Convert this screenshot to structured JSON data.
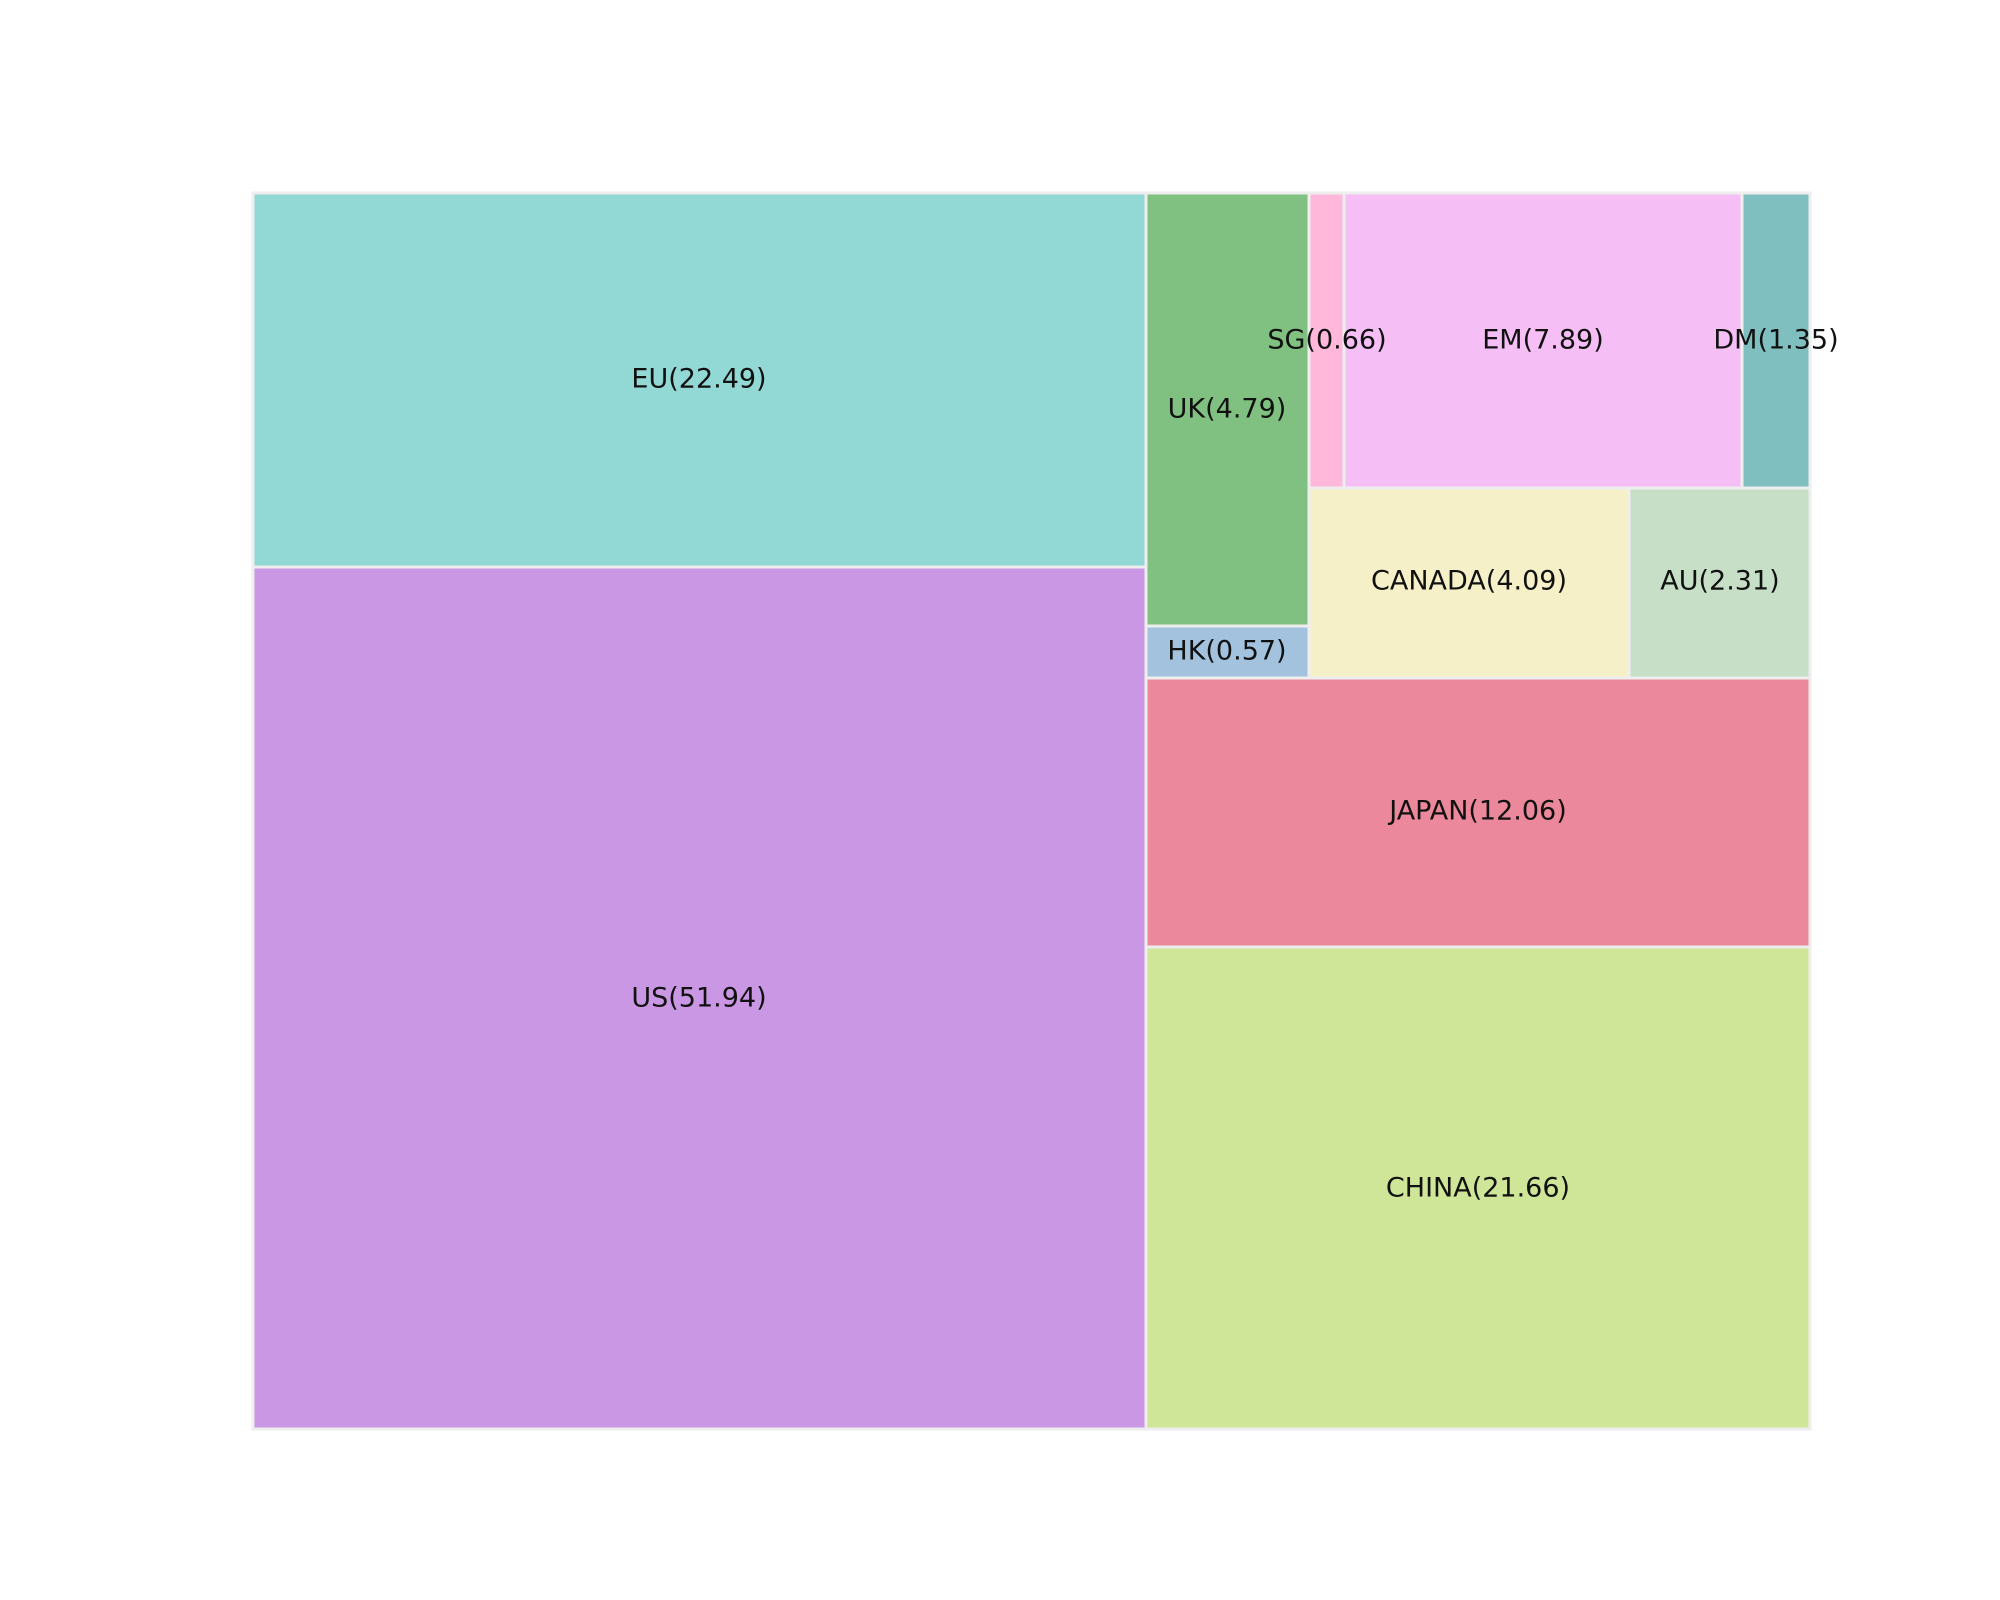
{
  "chart_data": {
    "type": "treemap",
    "title": "",
    "tiles": [
      {
        "name": "US",
        "value": 51.94,
        "label": "US(51.94)",
        "color": "#c997e3"
      },
      {
        "name": "EU",
        "value": 22.49,
        "label": "EU(22.49)",
        "color": "#92d8d5"
      },
      {
        "name": "CHINA",
        "value": 21.66,
        "label": "CHINA(21.66)",
        "color": "#cfe598"
      },
      {
        "name": "JAPAN",
        "value": 12.06,
        "label": "JAPAN(12.06)",
        "color": "#ec889b"
      },
      {
        "name": "EM",
        "value": 7.89,
        "label": "EM(7.89)",
        "color": "#f5bff5"
      },
      {
        "name": "UK",
        "value": 4.79,
        "label": "UK(4.79)",
        "color": "#80c080"
      },
      {
        "name": "CANADA",
        "value": 4.09,
        "label": "CANADA(4.09)",
        "color": "#f5f0c7"
      },
      {
        "name": "AU",
        "value": 2.31,
        "label": "AU(2.31)",
        "color": "#c7dec7"
      },
      {
        "name": "DM",
        "value": 1.35,
        "label": "DM(1.35)",
        "color": "#80bfbf"
      },
      {
        "name": "SG",
        "value": 0.66,
        "label": "SG(0.66)",
        "color": "#ffb8d9"
      },
      {
        "name": "HK",
        "value": 0.57,
        "label": "HK(0.57)",
        "color": "#a3c2de"
      }
    ]
  }
}
